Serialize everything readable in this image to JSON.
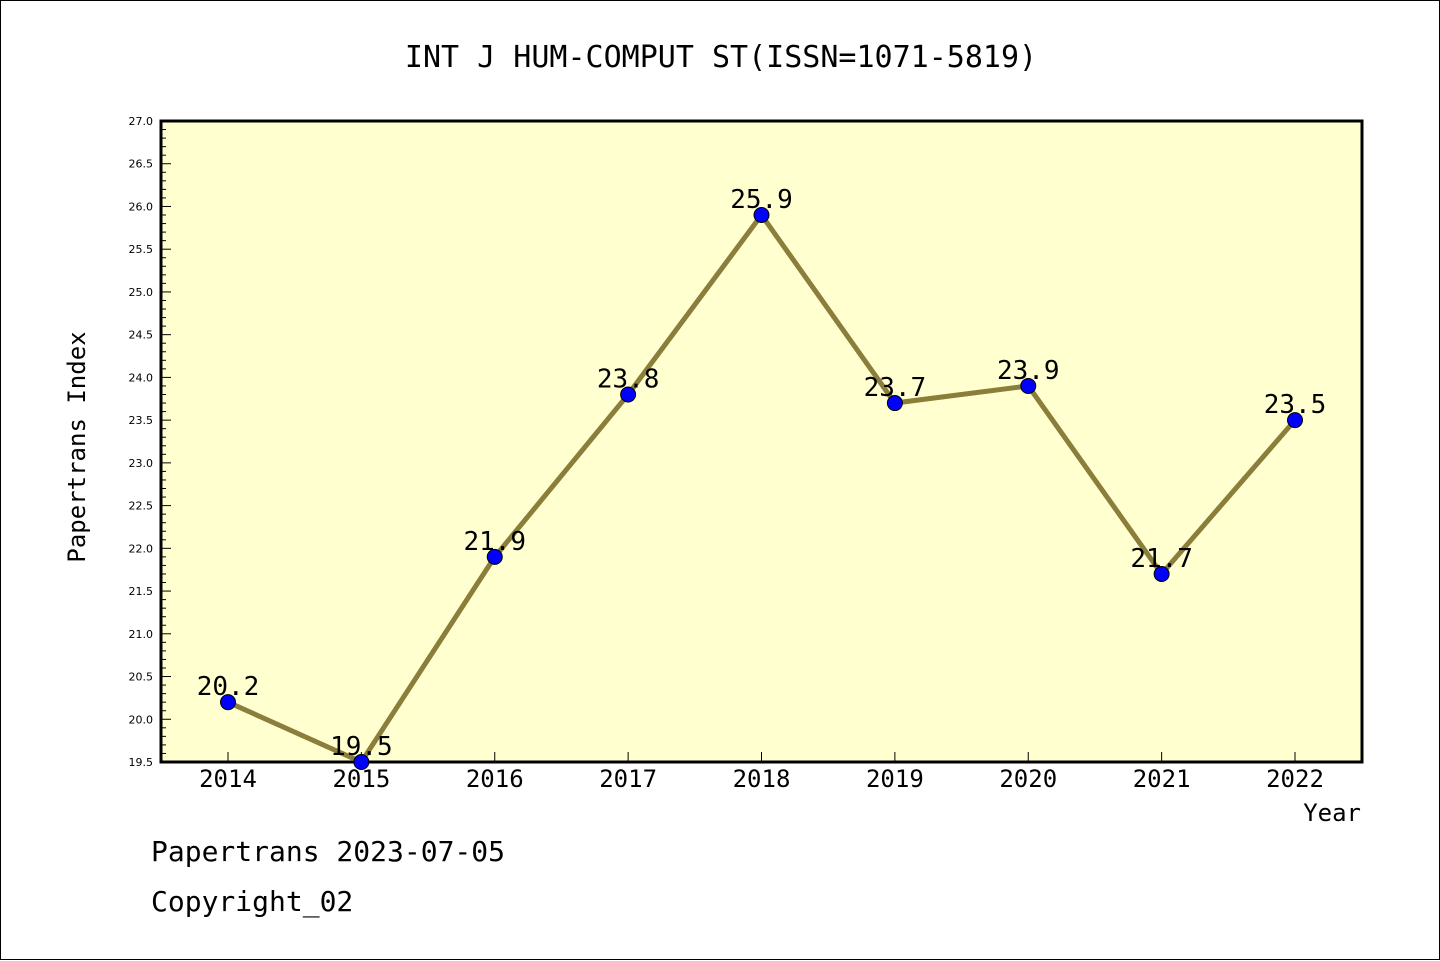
{
  "chart_data": {
    "type": "line",
    "title": "INT J HUM-COMPUT ST(ISSN=1071-5819)",
    "xlabel": "Year",
    "ylabel": "Papertrans Index",
    "x": [
      "2014",
      "2015",
      "2016",
      "2017",
      "2018",
      "2019",
      "2020",
      "2021",
      "2022"
    ],
    "values": [
      20.2,
      19.5,
      21.9,
      23.8,
      25.9,
      23.7,
      23.9,
      21.7,
      23.5
    ],
    "data_labels": [
      "20.2",
      "19.5",
      "21.9",
      "23.8",
      "25.9",
      "23.7",
      "23.9",
      "21.7",
      "23.5"
    ],
    "ylim": [
      19.5,
      27.0
    ],
    "yticks": [
      "19.5",
      "20.0",
      "20.5",
      "21.0",
      "21.5",
      "22.0",
      "22.5",
      "23.0",
      "23.5",
      "24.0",
      "24.5",
      "25.0",
      "25.5",
      "26.0",
      "26.5",
      "27.0"
    ],
    "grid": false,
    "legend": false,
    "colors": {
      "plot_background": "#ffffd0",
      "line": "#8b7d3a",
      "marker": "#0000ff"
    }
  },
  "footer": {
    "date_line": "Papertrans 2023-07-05",
    "copyright": "Copyright_02"
  }
}
